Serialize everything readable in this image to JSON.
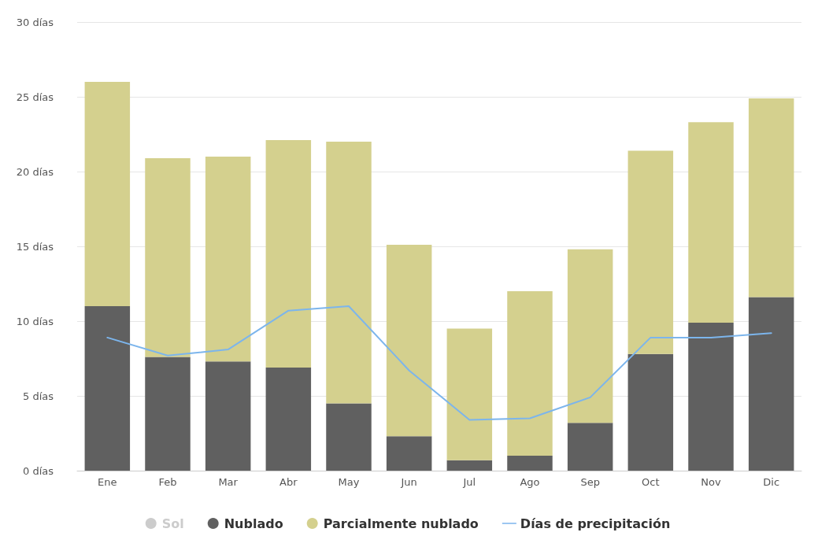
{
  "chart_data": {
    "type": "bar",
    "stacked": true,
    "categories": [
      "Ene",
      "Feb",
      "Mar",
      "Abr",
      "May",
      "Jun",
      "Jul",
      "Ago",
      "Sep",
      "Oct",
      "Nov",
      "Dic"
    ],
    "series": [
      {
        "name": "Sol",
        "color": "#cccccc",
        "values": [
          null,
          null,
          null,
          null,
          null,
          null,
          null,
          null,
          null,
          null,
          null,
          null
        ]
      },
      {
        "name": "Nublado",
        "color": "#606060",
        "values": [
          11.0,
          7.6,
          7.3,
          6.9,
          4.5,
          2.3,
          0.7,
          1.0,
          3.2,
          7.8,
          9.9,
          11.6
        ]
      },
      {
        "name": "Parcialmente nublado",
        "color": "#d4d08e",
        "values": [
          15.0,
          13.3,
          13.7,
          15.2,
          17.5,
          12.8,
          8.8,
          11.0,
          11.6,
          13.6,
          13.4,
          13.3
        ]
      },
      {
        "name": "Días de precipitación",
        "type": "line",
        "color": "#7cb5ec",
        "values": [
          8.9,
          7.7,
          8.1,
          10.7,
          11.0,
          6.7,
          3.4,
          3.5,
          4.9,
          8.9,
          8.9,
          9.2
        ]
      }
    ],
    "ylim": [
      0,
      30
    ],
    "yticks": [
      {
        "value": 0,
        "label": "0 días"
      },
      {
        "value": 5,
        "label": "5 días"
      },
      {
        "value": 10,
        "label": "10 días"
      },
      {
        "value": 15,
        "label": "15 días"
      },
      {
        "value": 20,
        "label": "20 días"
      },
      {
        "value": 25,
        "label": "25 días"
      },
      {
        "value": 30,
        "label": "30 días"
      }
    ],
    "grid": "y",
    "legend": "bottom",
    "marker": "none",
    "line_style": "solid"
  }
}
